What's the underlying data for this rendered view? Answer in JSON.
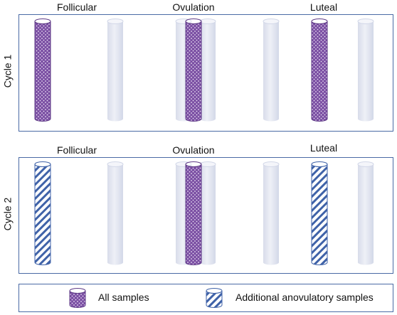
{
  "cycles": [
    {
      "label": "Cycle 1",
      "phases": [
        "Follicular",
        "Ovulation",
        "Luteal"
      ],
      "tubes": [
        "all-samples",
        "empty",
        "empty",
        "all-samples",
        "empty",
        "all-samples",
        "empty"
      ]
    },
    {
      "label": "Cycle 2",
      "phases": [
        "Follicular",
        "Ovulation",
        "Luteal"
      ],
      "tubes": [
        "anovulatory",
        "empty",
        "empty",
        "all-samples",
        "empty",
        "anovulatory",
        "empty"
      ]
    }
  ],
  "legend": {
    "all_samples": "All samples",
    "anovulatory": "Additional anovulatory samples"
  },
  "colors": {
    "frame": "#4a6aa5",
    "all_samples_fill": "#7b4fa3",
    "dot": "#e8ddf2",
    "stripe": "#3f62a8",
    "empty_tube": "#e3e6f1"
  }
}
